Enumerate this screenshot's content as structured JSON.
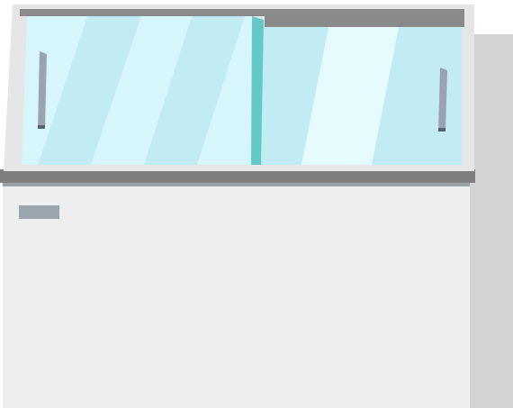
{
  "colors": {
    "background": "#ffffff",
    "cabinet_body": "#eeeeee",
    "cabinet_side": "#d3d3d3",
    "frame_light": "#e6e6e6",
    "frame_dark": "#8a8a8a",
    "lid_bar": "#7f7f7f",
    "lid_under": "#9aa0a4",
    "glass_back": "#c2ecf3",
    "glass_front": "#d6f6fb",
    "glass_stripe": "#e6fbfd",
    "glass_edge": "#63c9c6",
    "handle": "#9aa3b0",
    "handle_shadow": "#5b6170",
    "label_plate": "#9aa6af"
  },
  "icons": {
    "freezer": "chest-freezer-icon",
    "left_handle": "door-handle-icon",
    "right_handle": "door-handle-icon"
  }
}
